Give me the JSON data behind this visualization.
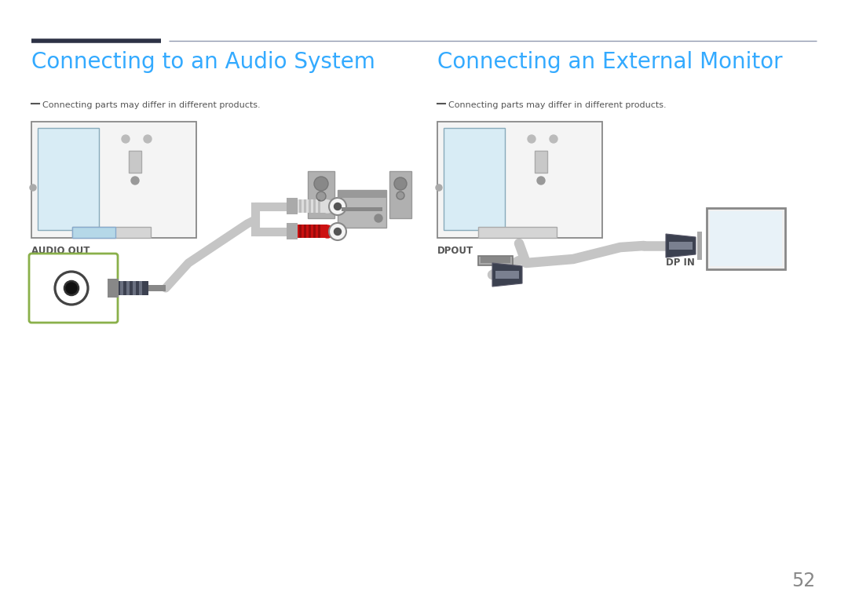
{
  "bg_color": "#ffffff",
  "title_color": "#33aaff",
  "header_line_dark": "#2d3245",
  "header_line_light": "#9099b0",
  "text_color_dark": "#444444",
  "title1": "Connecting to an Audio System",
  "title2": "Connecting an External Monitor",
  "subtitle": "Connecting parts may differ in different products.",
  "label_audio_out": "AUDIO OUT",
  "label_dp_out": "DPOUT",
  "label_dp_in": "DP IN",
  "page_number": "52",
  "green_box_color": "#8ab04a",
  "cable_color": "#c5c5c5",
  "rca_red": "#cc1111",
  "connector_dark": "#3c4150",
  "tv_outer": "#888888",
  "tv_bg": "#f4f4f4",
  "tv_inner_edge": "#88aabb",
  "tv_inner_fill": "#d8ecf5",
  "tv_port_fill": "#c8d8e0"
}
